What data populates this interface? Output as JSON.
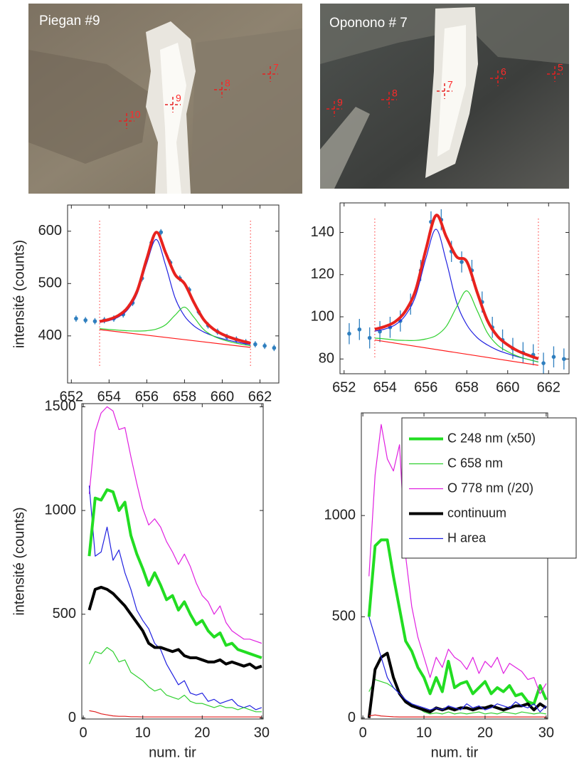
{
  "photos": [
    {
      "title": "Piegan #9",
      "markers": [
        "10",
        "9",
        "8",
        "7"
      ]
    },
    {
      "title": "Oponono # 7",
      "markers": [
        "9",
        "8",
        "7",
        "6",
        "5"
      ]
    }
  ],
  "chart_data": [
    {
      "type": "line",
      "curve": "smooth",
      "ylabel": "intensité (counts)",
      "xlim": [
        651.8,
        663.0
      ],
      "ylim": [
        310,
        650
      ],
      "xticks": [
        652,
        654,
        656,
        658,
        660,
        662
      ],
      "yticks": [
        400,
        500,
        600
      ],
      "vlines": [
        653.5,
        661.5
      ],
      "vline_color": "#ff6060",
      "x": [
        653.5,
        654,
        654.5,
        655,
        655.5,
        656,
        656.5,
        657,
        657.5,
        658,
        658.5,
        659,
        659.5,
        660,
        660.5,
        661,
        661.5
      ],
      "series": [
        {
          "color": "#2f7fbf",
          "style": "points",
          "x": [
            652.25,
            652.75,
            653.25,
            653.75,
            654.25,
            654.75,
            655.25,
            655.75,
            656.25,
            656.75,
            657.25,
            657.75,
            658.25,
            658.75,
            659.25,
            659.75,
            660.25,
            660.75,
            661.25,
            661.75,
            662.25,
            662.75
          ],
          "values": [
            433,
            430,
            428,
            430,
            433,
            441,
            463,
            510,
            578,
            598,
            540,
            510,
            488,
            446,
            420,
            408,
            398,
            393,
            388,
            384,
            381,
            377
          ],
          "errors": [
            6,
            6,
            6,
            6,
            6,
            6,
            6,
            6,
            6,
            6,
            6,
            6,
            6,
            6,
            6,
            6,
            6,
            6,
            6,
            6,
            6,
            6
          ]
        },
        {
          "color": "#ff1a1a",
          "width": 1.2,
          "x": [
            653.5,
            661.5
          ],
          "values": [
            412,
            378
          ]
        },
        {
          "color": "#2020e0",
          "width": 1.2,
          "values": [
            425.7,
            429.1,
            436.1,
            450.6,
            481.1,
            538.8,
            584.2,
            534.5,
            472.6,
            437.9,
            419.1,
            407.8,
            400.2,
            394.7,
            390.3,
            386.5,
            383.2
          ]
        },
        {
          "color": "#30d030",
          "width": 1.2,
          "values": [
            413.9,
            412.3,
            410.9,
            409.7,
            409.3,
            410.0,
            412.9,
            421.3,
            439.6,
            454.9,
            435.4,
            412.8,
            400.2,
            393.0,
            388.0,
            384.2,
            381.1
          ]
        },
        {
          "color": "#e8221e",
          "width": 4,
          "values": [
            427.6,
            431.5,
            439.2,
            454.7,
            486.9,
            547.4,
            597.9,
            558.7,
            517.2,
            499.9,
            463.7,
            432.0,
            413.9,
            403.3,
            396.1,
            390.6,
            386.3
          ]
        }
      ]
    },
    {
      "type": "line",
      "curve": "smooth",
      "xlim": [
        651.8,
        663.0
      ],
      "ylim": [
        73,
        154
      ],
      "xticks": [
        652,
        654,
        656,
        658,
        660,
        662
      ],
      "yticks": [
        80,
        100,
        120,
        140
      ],
      "vlines": [
        653.5,
        661.5
      ],
      "vline_color": "#ff6060",
      "x": [
        653.5,
        654,
        654.5,
        655,
        655.5,
        656,
        656.5,
        657,
        657.5,
        658,
        658.5,
        659,
        659.5,
        660,
        660.5,
        661,
        661.5
      ],
      "series": [
        {
          "color": "#2f7fbf",
          "style": "points",
          "x": [
            652.25,
            652.75,
            653.25,
            653.75,
            654.25,
            654.75,
            655.25,
            655.75,
            656.25,
            656.75,
            657.25,
            657.75,
            658.25,
            658.75,
            659.25,
            659.75,
            660.25,
            660.75,
            661.25,
            661.75,
            662.25,
            662.75
          ],
          "values": [
            92,
            94,
            90,
            93,
            95,
            98,
            106,
            122,
            145,
            146,
            131,
            126,
            122,
            107,
            95,
            89,
            85,
            83,
            82,
            78,
            81,
            80
          ],
          "errors": [
            5,
            5,
            5,
            5,
            5,
            5,
            5,
            5,
            5,
            5,
            5,
            5,
            5,
            5,
            5,
            5,
            5,
            5,
            5,
            5,
            5,
            5
          ]
        },
        {
          "color": "#ff1a1a",
          "width": 1.2,
          "x": [
            653.5,
            661.5
          ],
          "values": [
            89,
            77
          ]
        },
        {
          "color": "#2020e0",
          "width": 1.2,
          "values": [
            93.2,
            94.2,
            96.2,
            100.7,
            109.9,
            127.7,
            141.5,
            126.2,
            106.9,
            96.2,
            90.2,
            86.7,
            84.2,
            82.5,
            81.0,
            79.8,
            78.6
          ]
        },
        {
          "color": "#30d030",
          "width": 1.2,
          "values": [
            89.9,
            89.5,
            89.0,
            88.8,
            88.8,
            89.5,
            91.1,
            95.5,
            104.6,
            112.3,
            103.1,
            92.5,
            86.6,
            83.5,
            81.3,
            79.8,
            78.5
          ]
        },
        {
          "color": "#e8221e",
          "width": 4,
          "values": [
            94.1,
            95.4,
            97.7,
            102.7,
            112.7,
            131.9,
            148.1,
            137.9,
            128.5,
            126.2,
            111.8,
            98.4,
            90.8,
            86.7,
            83.8,
            81.8,
            80.1
          ]
        }
      ]
    },
    {
      "type": "line",
      "ylabel": "intensité (counts)",
      "xlabel": "num. tir",
      "xlim": [
        -0.25,
        30.25
      ],
      "ylim": [
        -5,
        1515
      ],
      "xticks": [
        0,
        10,
        20,
        30
      ],
      "yticks": [
        0,
        500,
        1000,
        1500
      ],
      "x": [
        1,
        2,
        3,
        4,
        5,
        6,
        7,
        8,
        9,
        10,
        11,
        12,
        13,
        14,
        15,
        16,
        17,
        18,
        19,
        20,
        21,
        22,
        23,
        24,
        25,
        26,
        27,
        28,
        29,
        30
      ],
      "series": [
        {
          "color": "#e020e0",
          "width": 1.2,
          "values": [
            1080,
            1380,
            1470,
            1500,
            1480,
            1390,
            1400,
            1260,
            1130,
            1010,
            930,
            960,
            920,
            850,
            800,
            740,
            790,
            730,
            650,
            590,
            560,
            500,
            540,
            460,
            420,
            400,
            380,
            380,
            370,
            360
          ]
        },
        {
          "color": "#2020e0",
          "width": 1.2,
          "values": [
            1120,
            780,
            800,
            920,
            760,
            810,
            700,
            620,
            520,
            470,
            430,
            360,
            330,
            260,
            210,
            160,
            180,
            120,
            110,
            120,
            80,
            90,
            70,
            80,
            90,
            60,
            50,
            60,
            40,
            50
          ]
        },
        {
          "color": "#22dd22",
          "width": 4,
          "values": [
            780,
            1060,
            1050,
            1100,
            1090,
            1000,
            1040,
            880,
            790,
            720,
            640,
            700,
            640,
            570,
            590,
            520,
            560,
            500,
            450,
            470,
            420,
            390,
            410,
            350,
            360,
            330,
            320,
            310,
            300,
            290
          ]
        },
        {
          "color": "#000000",
          "width": 4,
          "values": [
            520,
            620,
            630,
            620,
            600,
            570,
            540,
            500,
            460,
            420,
            360,
            340,
            340,
            330,
            320,
            330,
            300,
            290,
            290,
            280,
            270,
            270,
            280,
            260,
            270,
            260,
            250,
            260,
            240,
            250
          ]
        },
        {
          "color": "#30d030",
          "width": 1.2,
          "values": [
            260,
            320,
            310,
            340,
            320,
            270,
            280,
            220,
            200,
            180,
            150,
            130,
            140,
            110,
            100,
            90,
            110,
            80,
            70,
            70,
            60,
            50,
            60,
            50,
            50,
            40,
            50,
            40,
            30,
            30
          ]
        },
        {
          "color": "#e02020",
          "width": 1.2,
          "values": [
            35,
            30,
            20,
            15,
            10,
            8,
            8,
            6,
            6,
            5,
            5,
            5,
            5,
            5,
            5,
            5,
            5,
            5,
            5,
            5,
            5,
            5,
            5,
            5,
            5,
            5,
            5,
            5,
            5,
            5
          ]
        }
      ]
    },
    {
      "type": "line",
      "xlabel": "num. tir",
      "legend": "upper right",
      "xlim": [
        -0.25,
        30.25
      ],
      "ylim": [
        -5,
        1507
      ],
      "xticks": [
        0,
        10,
        20,
        30
      ],
      "yticks": [
        0,
        500,
        1000
      ],
      "x": [
        1,
        2,
        3,
        4,
        5,
        6,
        7,
        8,
        9,
        10,
        11,
        12,
        13,
        14,
        15,
        16,
        17,
        18,
        19,
        20,
        21,
        22,
        23,
        24,
        25,
        26,
        27,
        28,
        29,
        30
      ],
      "series": [
        {
          "name": "C 248 nm (x50)",
          "color": "#22dd22",
          "width": 4,
          "values": [
            500,
            850,
            880,
            880,
            700,
            540,
            380,
            330,
            250,
            200,
            120,
            200,
            130,
            280,
            150,
            170,
            180,
            120,
            150,
            180,
            120,
            150,
            130,
            160,
            110,
            120,
            80,
            70,
            160,
            90
          ]
        },
        {
          "name": "C 658 nm",
          "color": "#30d030",
          "width": 1.2,
          "values": [
            130,
            190,
            180,
            170,
            150,
            120,
            90,
            70,
            50,
            30,
            20,
            25,
            20,
            30,
            20,
            25,
            20,
            25,
            30,
            20,
            25,
            20,
            30,
            25,
            20,
            30,
            25,
            20,
            25,
            20
          ]
        },
        {
          "name": "O 778 nm (/20)",
          "color": "#e020e0",
          "width": 1.2,
          "values": [
            700,
            1200,
            1450,
            1280,
            1220,
            1350,
            800,
            550,
            400,
            300,
            200,
            300,
            250,
            340,
            300,
            280,
            240,
            300,
            220,
            280,
            250,
            300,
            220,
            270,
            250,
            230,
            190,
            200,
            120,
            170
          ]
        },
        {
          "name": "continuum",
          "color": "#000000",
          "width": 4,
          "values": [
            0,
            240,
            300,
            320,
            200,
            120,
            80,
            60,
            50,
            40,
            30,
            50,
            40,
            50,
            40,
            50,
            50,
            40,
            50,
            50,
            60,
            50,
            40,
            50,
            60,
            60,
            70,
            40,
            70,
            50
          ]
        },
        {
          "name": "H area",
          "color": "#2020e0",
          "width": 1.2,
          "values": [
            500,
            400,
            300,
            200,
            150,
            120,
            90,
            70,
            60,
            50,
            40,
            50,
            40,
            60,
            50,
            40,
            70,
            50,
            60,
            40,
            50,
            70,
            60,
            50,
            80,
            60,
            50,
            70,
            30,
            60
          ]
        },
        {
          "color": "#e02020",
          "width": 1.2,
          "values": [
            10,
            15,
            10,
            8,
            6,
            5,
            5,
            5,
            5,
            5,
            5,
            5,
            5,
            5,
            5,
            5,
            5,
            5,
            5,
            5,
            5,
            5,
            5,
            5,
            5,
            5,
            5,
            5,
            5,
            5
          ]
        }
      ]
    }
  ]
}
